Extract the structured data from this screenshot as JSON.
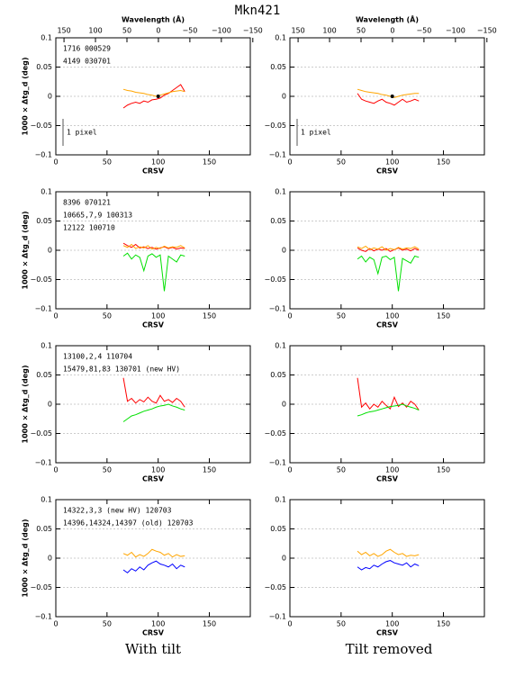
{
  "title": "Mkn421",
  "columns": [
    "With tilt",
    "Tilt removed"
  ],
  "chart_data": [
    {
      "type": "line",
      "x": [
        66,
        70,
        74,
        78,
        82,
        86,
        90,
        94,
        98,
        102,
        106,
        110,
        114,
        118,
        122,
        126
      ],
      "xlim": [
        0,
        190
      ],
      "xticks": [
        0,
        50,
        100,
        150
      ],
      "x2lim": [
        163,
        -146
      ],
      "x2ticks": [
        150,
        100,
        50,
        0,
        {
          "value": -50,
          "label": "−50"
        },
        {
          "value": -100,
          "label": "−100"
        },
        {
          "value": -150,
          "label": "−150"
        }
      ],
      "x2label": "Wavelength (Å)",
      "ylim": [
        -0.1,
        0.1
      ],
      "yticks": [
        {
          "value": -0.1,
          "label": "−0.1"
        },
        {
          "value": -0.05,
          "label": "−0.05"
        },
        0,
        0.05,
        0.1
      ],
      "grid": true,
      "xlabel": "CRSV",
      "ylabel": "1000 × Δtg_d (deg)",
      "annotation": "1 pixel",
      "marker": {
        "x": 100,
        "y": 0,
        "color": "#000000"
      },
      "series": [
        {
          "name": "1716 000529",
          "color": "#ff0000",
          "values": [
            -0.02,
            -0.015,
            -0.012,
            -0.01,
            -0.012,
            -0.008,
            -0.01,
            -0.006,
            -0.005,
            -0.003,
            0.002,
            0.005,
            0.01,
            0.015,
            0.02,
            0.008
          ]
        },
        {
          "name": "4149 030701",
          "color": "#ffa500",
          "values": [
            0.012,
            0.01,
            0.009,
            0.007,
            0.006,
            0.005,
            0.003,
            0.002,
            0,
            0.002,
            0.004,
            0.006,
            0.008,
            0.009,
            0.01,
            0.008
          ]
        }
      ]
    },
    {
      "type": "line",
      "x": [
        66,
        70,
        74,
        78,
        82,
        86,
        90,
        94,
        98,
        102,
        106,
        110,
        114,
        118,
        122,
        126
      ],
      "xlim": [
        0,
        190
      ],
      "xticks": [
        0,
        50,
        100,
        150
      ],
      "x2lim": [
        163,
        -146
      ],
      "x2ticks": [
        150,
        100,
        50,
        0,
        {
          "value": -50,
          "label": "−50"
        },
        {
          "value": -100,
          "label": "−100"
        },
        {
          "value": -150,
          "label": "−150"
        }
      ],
      "x2label": "Wavelength (Å)",
      "ylim": [
        -0.1,
        0.1
      ],
      "yticks": [
        {
          "value": -0.1,
          "label": "−0.1"
        },
        {
          "value": -0.05,
          "label": "−0.05"
        },
        0,
        0.05,
        0.1
      ],
      "grid": true,
      "xlabel": "CRSV",
      "annotation": "1 pixel",
      "marker": {
        "x": 100,
        "y": 0,
        "color": "#000000"
      },
      "series": [
        {
          "color": "#ff0000",
          "values": [
            0.005,
            -0.005,
            -0.008,
            -0.01,
            -0.012,
            -0.008,
            -0.005,
            -0.01,
            -0.012,
            -0.015,
            -0.01,
            -0.005,
            -0.01,
            -0.008,
            -0.005,
            -0.008
          ]
        },
        {
          "color": "#ffa500",
          "values": [
            0.012,
            0.01,
            0.008,
            0.007,
            0.006,
            0.005,
            0.003,
            0.002,
            0,
            -0.002,
            0,
            0.002,
            0.003,
            0.004,
            0.005,
            0.005
          ]
        }
      ]
    },
    {
      "type": "line",
      "x": [
        66,
        70,
        74,
        78,
        82,
        86,
        90,
        94,
        98,
        102,
        106,
        110,
        114,
        118,
        122,
        126
      ],
      "xlim": [
        0,
        190
      ],
      "xticks": [
        0,
        50,
        100,
        150
      ],
      "ylim": [
        -0.1,
        0.1
      ],
      "yticks": [
        {
          "value": -0.1,
          "label": "−0.1"
        },
        {
          "value": -0.05,
          "label": "−0.05"
        },
        0,
        0.05,
        0.1
      ],
      "grid": true,
      "xlabel": "CRSV",
      "ylabel": "1000 × Δtg_d (deg)",
      "series": [
        {
          "name": "8396 070121",
          "color": "#ff0000",
          "values": [
            0.012,
            0.008,
            0.005,
            0.01,
            0.004,
            0.006,
            0.003,
            0.005,
            0.002,
            0.004,
            0.006,
            0.003,
            0.005,
            0.002,
            0.004,
            0.003
          ]
        },
        {
          "name": "10665,7,9 100313",
          "color": "#ffa500",
          "values": [
            0.008,
            0.005,
            0.01,
            0.003,
            0.006,
            0.004,
            0.008,
            0.002,
            0.005,
            0.003,
            0.007,
            0.004,
            0.006,
            0.005,
            0.008,
            0.004
          ]
        },
        {
          "name": "12122 100710",
          "color": "#00e000",
          "values": [
            -0.01,
            -0.005,
            -0.015,
            -0.008,
            -0.012,
            -0.035,
            -0.01,
            -0.006,
            -0.012,
            -0.008,
            -0.07,
            -0.01,
            -0.015,
            -0.02,
            -0.008,
            -0.01
          ]
        }
      ]
    },
    {
      "type": "line",
      "x": [
        66,
        70,
        74,
        78,
        82,
        86,
        90,
        94,
        98,
        102,
        106,
        110,
        114,
        118,
        122,
        126
      ],
      "xlim": [
        0,
        190
      ],
      "xticks": [
        0,
        50,
        100,
        150
      ],
      "ylim": [
        -0.1,
        0.1
      ],
      "yticks": [
        {
          "value": -0.1,
          "label": "−0.1"
        },
        {
          "value": -0.05,
          "label": "−0.05"
        },
        0,
        0.05,
        0.1
      ],
      "grid": true,
      "xlabel": "CRSV",
      "series": [
        {
          "color": "#ff0000",
          "values": [
            0.004,
            0,
            -0.002,
            0.003,
            -0.001,
            0.002,
            0,
            0.003,
            -0.002,
            0.001,
            0.004,
            0,
            0.002,
            -0.001,
            0.003,
            0
          ]
        },
        {
          "color": "#ffa500",
          "values": [
            0.006,
            0.003,
            0.007,
            0.001,
            0.004,
            0.002,
            0.006,
            0,
            0.003,
            0.001,
            0.005,
            0.002,
            0.004,
            0.003,
            0.006,
            0.002
          ]
        },
        {
          "color": "#00e000",
          "values": [
            -0.015,
            -0.01,
            -0.02,
            -0.012,
            -0.016,
            -0.04,
            -0.012,
            -0.01,
            -0.016,
            -0.012,
            -0.07,
            -0.014,
            -0.018,
            -0.022,
            -0.01,
            -0.012
          ]
        }
      ]
    },
    {
      "type": "line",
      "x": [
        66,
        70,
        74,
        78,
        82,
        86,
        90,
        94,
        98,
        102,
        106,
        110,
        114,
        118,
        122,
        126
      ],
      "xlim": [
        0,
        190
      ],
      "xticks": [
        0,
        50,
        100,
        150
      ],
      "ylim": [
        -0.1,
        0.1
      ],
      "yticks": [
        {
          "value": -0.1,
          "label": "−0.1"
        },
        {
          "value": -0.05,
          "label": "−0.05"
        },
        0,
        0.05,
        0.1
      ],
      "grid": true,
      "xlabel": "CRSV",
      "ylabel": "1000 × Δtg_d (deg)",
      "series": [
        {
          "name": "13100,2,4 110704",
          "color": "#ff0000",
          "values": [
            0.045,
            0.005,
            0.01,
            0.002,
            0.008,
            0.004,
            0.012,
            0.005,
            0.002,
            0.015,
            0.005,
            0.008,
            0.003,
            0.01,
            0.005,
            -0.005
          ]
        },
        {
          "name": "15479,81,83 130701 (new HV)",
          "color": "#00e000",
          "values": [
            -0.03,
            -0.025,
            -0.02,
            -0.018,
            -0.015,
            -0.012,
            -0.01,
            -0.008,
            -0.005,
            -0.003,
            -0.002,
            0,
            -0.003,
            -0.005,
            -0.008,
            -0.01
          ]
        }
      ]
    },
    {
      "type": "line",
      "x": [
        66,
        70,
        74,
        78,
        82,
        86,
        90,
        94,
        98,
        102,
        106,
        110,
        114,
        118,
        122,
        126
      ],
      "xlim": [
        0,
        190
      ],
      "xticks": [
        0,
        50,
        100,
        150
      ],
      "ylim": [
        -0.1,
        0.1
      ],
      "yticks": [
        {
          "value": -0.1,
          "label": "−0.1"
        },
        {
          "value": -0.05,
          "label": "−0.05"
        },
        0,
        0.05,
        0.1
      ],
      "grid": true,
      "xlabel": "CRSV",
      "series": [
        {
          "color": "#ff0000",
          "values": [
            0.045,
            -0.005,
            0.002,
            -0.008,
            0,
            -0.005,
            0.005,
            -0.002,
            -0.008,
            0.012,
            -0.004,
            0.002,
            -0.005,
            0.005,
            0,
            -0.01
          ]
        },
        {
          "color": "#00e000",
          "values": [
            -0.02,
            -0.018,
            -0.015,
            -0.013,
            -0.012,
            -0.01,
            -0.008,
            -0.006,
            -0.004,
            -0.003,
            -0.002,
            0,
            -0.003,
            -0.005,
            -0.007,
            -0.01
          ]
        }
      ]
    },
    {
      "type": "line",
      "x": [
        66,
        70,
        74,
        78,
        82,
        86,
        90,
        94,
        98,
        102,
        106,
        110,
        114,
        118,
        122,
        126
      ],
      "xlim": [
        0,
        190
      ],
      "xticks": [
        0,
        50,
        100,
        150
      ],
      "ylim": [
        -0.1,
        0.1
      ],
      "yticks": [
        {
          "value": -0.1,
          "label": "−0.1"
        },
        {
          "value": -0.05,
          "label": "−0.05"
        },
        0,
        0.05,
        0.1
      ],
      "grid": true,
      "xlabel": "CRSV",
      "ylabel": "1000 × Δtg_d (deg)",
      "series": [
        {
          "name": "14322,3,3 (new HV) 120703",
          "color": "#0000ff",
          "values": [
            -0.02,
            -0.025,
            -0.018,
            -0.022,
            -0.015,
            -0.02,
            -0.012,
            -0.008,
            -0.005,
            -0.01,
            -0.012,
            -0.015,
            -0.01,
            -0.018,
            -0.012,
            -0.015
          ]
        },
        {
          "name": "14396,14324,14397 (old) 120703",
          "color": "#ffa500",
          "values": [
            0.008,
            0.005,
            0.01,
            0.002,
            0.006,
            0.003,
            0.008,
            0.015,
            0.012,
            0.01,
            0.005,
            0.008,
            0.002,
            0.006,
            0.003,
            0.004
          ]
        }
      ]
    },
    {
      "type": "line",
      "x": [
        66,
        70,
        74,
        78,
        82,
        86,
        90,
        94,
        98,
        102,
        106,
        110,
        114,
        118,
        122,
        126
      ],
      "xlim": [
        0,
        190
      ],
      "xticks": [
        0,
        50,
        100,
        150
      ],
      "ylim": [
        -0.1,
        0.1
      ],
      "yticks": [
        {
          "value": -0.1,
          "label": "−0.1"
        },
        {
          "value": -0.05,
          "label": "−0.05"
        },
        0,
        0.05,
        0.1
      ],
      "grid": true,
      "xlabel": "CRSV",
      "series": [
        {
          "color": "#0000ff",
          "values": [
            -0.015,
            -0.02,
            -0.016,
            -0.018,
            -0.012,
            -0.015,
            -0.01,
            -0.006,
            -0.004,
            -0.008,
            -0.01,
            -0.012,
            -0.008,
            -0.015,
            -0.01,
            -0.013
          ]
        },
        {
          "color": "#ffa500",
          "values": [
            0.012,
            0.006,
            0.01,
            0.004,
            0.008,
            0.003,
            0.006,
            0.012,
            0.015,
            0.01,
            0.006,
            0.008,
            0.003,
            0.005,
            0.004,
            0.006
          ]
        }
      ]
    }
  ]
}
